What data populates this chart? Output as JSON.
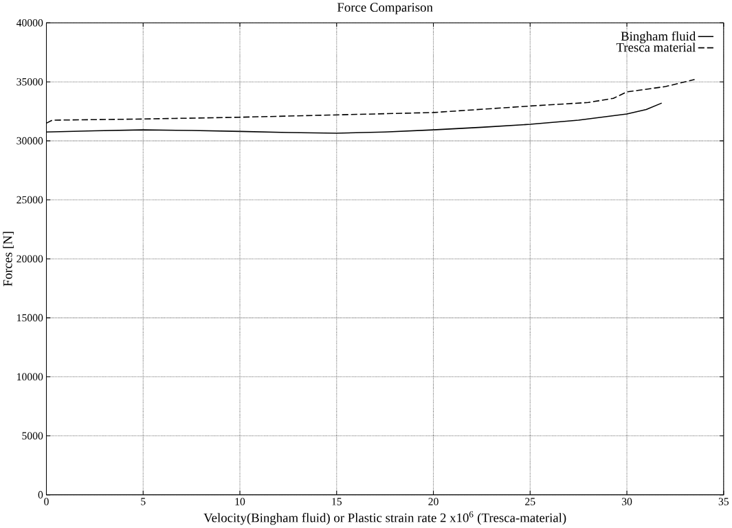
{
  "chart_data": {
    "type": "line",
    "title": "Force Comparison",
    "xlabel": "Velocity(Bingham fluid) or Plastic strain rate 2 x10$^{6}$ (Tresca-material)",
    "ylabel": "Forces [N]",
    "xlim": [
      0,
      35
    ],
    "xticks": [
      0,
      5,
      10,
      15,
      20,
      25,
      30,
      35
    ],
    "ylim": [
      0,
      40000
    ],
    "yticks": [
      0,
      5000,
      10000,
      15000,
      20000,
      25000,
      30000,
      35000,
      40000
    ],
    "grid": true,
    "legend": "top right",
    "series": [
      {
        "name": "Bingham fluid",
        "color": "#000000",
        "line_style": "solid",
        "x": [
          0,
          2.5,
          5,
          7.5,
          10,
          12.5,
          15,
          17.5,
          20,
          22.5,
          25,
          27.5,
          30,
          31,
          31.8
        ],
        "values": [
          30750,
          30850,
          30930,
          30880,
          30800,
          30700,
          30650,
          30750,
          30930,
          31150,
          31400,
          31750,
          32280,
          32650,
          33200
        ]
      },
      {
        "name": "Tresca material",
        "color": "#000000",
        "line_style": "dashed",
        "x": [
          0,
          0.3,
          5,
          10,
          15,
          20,
          25,
          28,
          29.3,
          30,
          32,
          33.5
        ],
        "values": [
          31500,
          31750,
          31850,
          32000,
          32200,
          32400,
          32950,
          33250,
          33600,
          34150,
          34600,
          35200
        ]
      }
    ]
  }
}
